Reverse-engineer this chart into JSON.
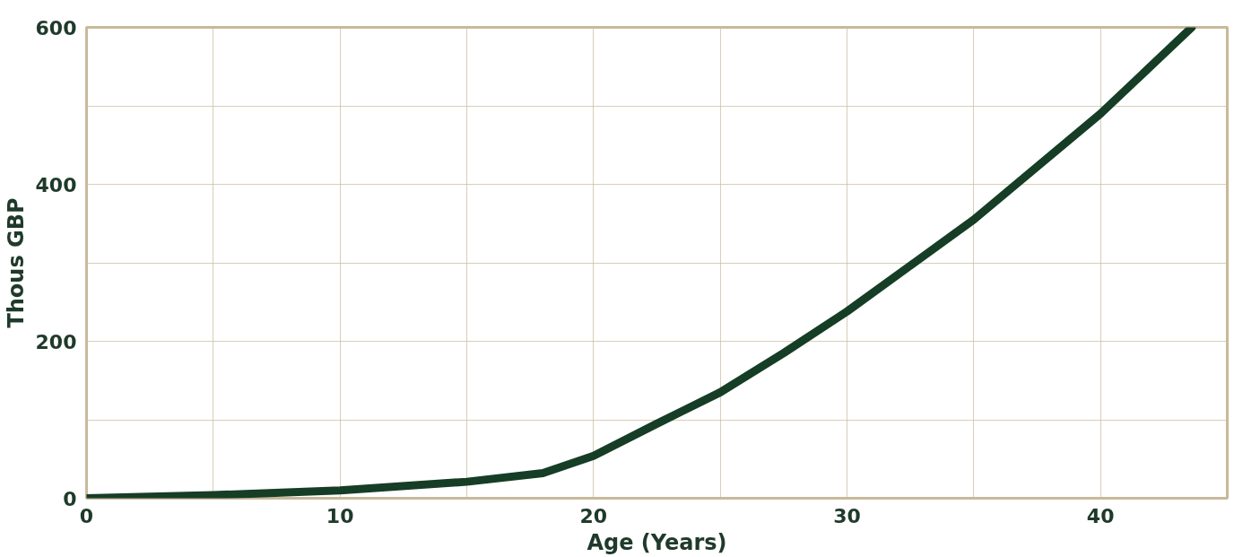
{
  "chart_data": {
    "type": "line",
    "xlabel": "Age (Years)",
    "ylabel": "Thous GBP",
    "x": [
      0,
      5,
      10,
      15,
      18,
      20,
      22.5,
      25,
      27.5,
      30,
      35,
      40,
      43.6
    ],
    "series": [
      {
        "color": "#163d26",
        "values": [
          0,
          4,
          10,
          21,
          32,
          54,
          95,
          135,
          185,
          238,
          355,
          490,
          600
        ]
      }
    ],
    "xlim": [
      0,
      45
    ],
    "ylim": [
      0,
      600
    ],
    "xticks": [
      0,
      {
        "value": 5,
        "label": null
      },
      10,
      {
        "value": 15,
        "label": null
      },
      20,
      {
        "value": 25,
        "label": null
      },
      30,
      {
        "value": 35,
        "label": null
      },
      40
    ],
    "yticks": [
      0,
      {
        "value": 100,
        "label": null
      },
      200,
      {
        "value": 300,
        "label": null
      },
      400,
      {
        "value": 500,
        "label": null
      },
      600
    ],
    "grid": true,
    "marker": "none",
    "line_style": "solid"
  }
}
